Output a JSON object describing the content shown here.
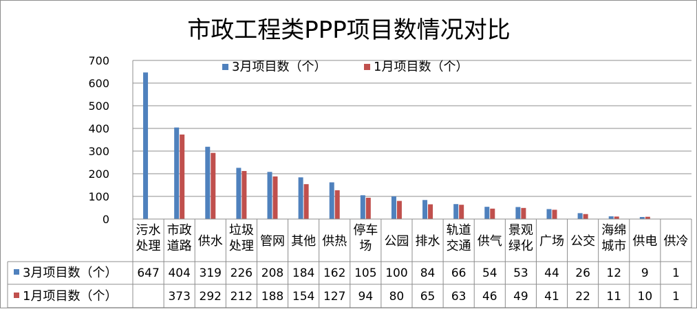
{
  "chart_data": {
    "type": "bar",
    "title": "市政工程类PPP项目数情况对比",
    "categories": [
      [
        "污水",
        "处理"
      ],
      [
        "市政",
        "道路"
      ],
      [
        "供水"
      ],
      [
        "垃圾",
        "处理"
      ],
      [
        "管网"
      ],
      [
        "其他"
      ],
      [
        "供热"
      ],
      [
        "停车",
        "场"
      ],
      [
        "公园"
      ],
      [
        "排水"
      ],
      [
        "轨道",
        "交通"
      ],
      [
        "供气"
      ],
      [
        "景观",
        "绿化"
      ],
      [
        "广场"
      ],
      [
        "公交"
      ],
      [
        "海绵",
        "城市"
      ],
      [
        "供电"
      ],
      [
        "供冷"
      ]
    ],
    "series": [
      {
        "name": "3月项目数（个）",
        "color": "#4f81bd",
        "values": [
          647,
          404,
          319,
          226,
          208,
          184,
          162,
          105,
          100,
          84,
          66,
          54,
          53,
          44,
          26,
          12,
          9,
          1
        ]
      },
      {
        "name": "1月项目数（个）",
        "color": "#c0504d",
        "values": [
          null,
          373,
          292,
          212,
          188,
          154,
          127,
          94,
          80,
          65,
          63,
          46,
          49,
          41,
          22,
          11,
          10,
          1
        ]
      }
    ],
    "ylim": [
      0,
      700
    ],
    "yticks": [
      0,
      100,
      200,
      300,
      400,
      500,
      600,
      700
    ],
    "grid": true,
    "legend": "top",
    "data_table": true
  }
}
